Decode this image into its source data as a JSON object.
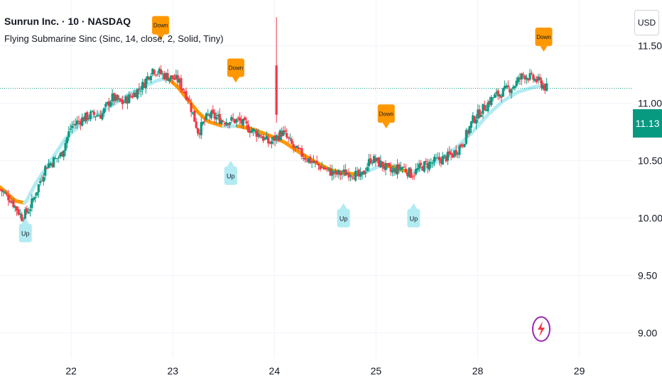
{
  "header": {
    "symbol_line": "Sunrun Inc. · 10 · NASDAQ",
    "indicator_line": "Flying Submarine Sinc (Sinc, 14, close, 2, Solid, Tiny)"
  },
  "currency_label": "USD",
  "last_price_label": "11.13",
  "icons": {
    "bolt": "lightning-bolt-icon"
  },
  "colors": {
    "up_candle": "#089981",
    "down_candle": "#f23645",
    "ma_rising": "#b2ebf2",
    "ma_falling": "#ff9800",
    "up_signal_bg": "#b2ebf2",
    "down_signal_bg": "#ff9800",
    "price_tag": "#089981"
  },
  "chart_data": {
    "type": "candlestick",
    "title": "Sunrun Inc. · 10 · NASDAQ",
    "y_ticks": [
      "11.50",
      "11.00",
      "10.50",
      "10.00",
      "9.50",
      "9.00"
    ],
    "y_tick_values": [
      11.5,
      11.0,
      10.5,
      10.0,
      9.5,
      9.0
    ],
    "ylim": [
      8.78,
      11.9
    ],
    "x_ticks": [
      "22",
      "23",
      "24",
      "25",
      "28",
      "29"
    ],
    "x_tick_positions": [
      0.7,
      1.7,
      2.7,
      3.7,
      4.7,
      5.7
    ],
    "xlim": [
      0,
      6.22
    ],
    "last_price": 11.13,
    "grid": true,
    "price_path": [
      [
        0.0,
        10.25
      ],
      [
        0.1,
        10.17
      ],
      [
        0.22,
        10.0
      ],
      [
        0.3,
        10.1
      ],
      [
        0.45,
        10.45
      ],
      [
        0.6,
        10.55
      ],
      [
        0.7,
        10.8
      ],
      [
        0.8,
        10.86
      ],
      [
        0.9,
        10.9
      ],
      [
        1.0,
        10.9
      ],
      [
        1.1,
        11.05
      ],
      [
        1.2,
        11.0
      ],
      [
        1.3,
        11.07
      ],
      [
        1.4,
        11.15
      ],
      [
        1.5,
        11.3
      ],
      [
        1.6,
        11.25
      ],
      [
        1.75,
        11.2
      ],
      [
        1.85,
        11.05
      ],
      [
        1.95,
        10.75
      ],
      [
        2.05,
        10.9
      ],
      [
        2.2,
        10.85
      ],
      [
        2.35,
        10.85
      ],
      [
        2.45,
        10.78
      ],
      [
        2.55,
        10.73
      ],
      [
        2.65,
        10.65
      ],
      [
        2.78,
        10.75
      ],
      [
        2.9,
        10.6
      ],
      [
        3.05,
        10.5
      ],
      [
        3.15,
        10.45
      ],
      [
        3.3,
        10.38
      ],
      [
        3.45,
        10.4
      ],
      [
        3.55,
        10.35
      ],
      [
        3.65,
        10.52
      ],
      [
        3.75,
        10.47
      ],
      [
        3.85,
        10.4
      ],
      [
        3.95,
        10.45
      ],
      [
        4.05,
        10.38
      ],
      [
        4.15,
        10.45
      ],
      [
        4.3,
        10.5
      ],
      [
        4.45,
        10.55
      ],
      [
        4.55,
        10.65
      ],
      [
        4.65,
        10.85
      ],
      [
        4.75,
        10.95
      ],
      [
        4.85,
        11.05
      ],
      [
        4.95,
        11.1
      ],
      [
        5.05,
        11.15
      ],
      [
        5.15,
        11.25
      ],
      [
        5.28,
        11.2
      ],
      [
        5.38,
        11.13
      ]
    ],
    "moving_average": [
      [
        0.0,
        10.27
      ],
      [
        0.15,
        10.15
      ],
      [
        0.25,
        10.13
      ],
      [
        0.35,
        10.3
      ],
      [
        0.5,
        10.5
      ],
      [
        0.65,
        10.7
      ],
      [
        0.8,
        10.82
      ],
      [
        0.95,
        10.9
      ],
      [
        1.1,
        10.98
      ],
      [
        1.25,
        11.07
      ],
      [
        1.4,
        11.14
      ],
      [
        1.55,
        11.2
      ],
      [
        1.65,
        11.22
      ],
      [
        1.75,
        11.14
      ],
      [
        1.85,
        11.03
      ],
      [
        1.95,
        10.92
      ],
      [
        2.05,
        10.84
      ],
      [
        2.2,
        10.8
      ],
      [
        2.35,
        10.8
      ],
      [
        2.5,
        10.77
      ],
      [
        2.65,
        10.72
      ],
      [
        2.8,
        10.66
      ],
      [
        2.95,
        10.57
      ],
      [
        3.1,
        10.49
      ],
      [
        3.25,
        10.42
      ],
      [
        3.4,
        10.39
      ],
      [
        3.55,
        10.38
      ],
      [
        3.65,
        10.42
      ],
      [
        3.75,
        10.46
      ],
      [
        3.85,
        10.45
      ],
      [
        3.95,
        10.42
      ],
      [
        4.05,
        10.4
      ],
      [
        4.2,
        10.44
      ],
      [
        4.35,
        10.52
      ],
      [
        4.5,
        10.62
      ],
      [
        4.65,
        10.75
      ],
      [
        4.8,
        10.9
      ],
      [
        4.95,
        11.02
      ],
      [
        5.1,
        11.1
      ],
      [
        5.25,
        11.14
      ],
      [
        5.36,
        11.16
      ]
    ],
    "spikes": [
      {
        "x": 2.72,
        "high": 11.75,
        "low": 10.83
      }
    ],
    "signals": [
      {
        "label": "Up",
        "x": 0.25,
        "price": 9.95,
        "kind": "up"
      },
      {
        "label": "Down",
        "x": 1.58,
        "price": 11.55,
        "kind": "down"
      },
      {
        "label": "Down",
        "x": 2.32,
        "price": 11.18,
        "kind": "down"
      },
      {
        "label": "Up",
        "x": 2.27,
        "price": 10.45,
        "kind": "up"
      },
      {
        "label": "Down",
        "x": 3.8,
        "price": 10.78,
        "kind": "down"
      },
      {
        "label": "Up",
        "x": 3.38,
        "price": 10.08,
        "kind": "up"
      },
      {
        "label": "Up",
        "x": 4.07,
        "price": 10.08,
        "kind": "up"
      },
      {
        "label": "Down",
        "x": 5.35,
        "price": 11.45,
        "kind": "down"
      }
    ]
  }
}
